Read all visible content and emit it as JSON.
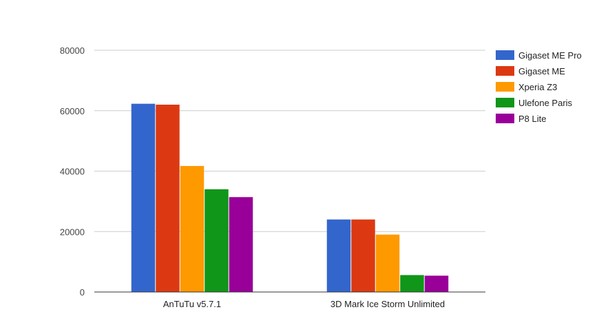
{
  "chart_data": {
    "type": "bar",
    "categories": [
      "AnTuTu v5.7.1",
      "3D Mark Ice Storm Unlimited"
    ],
    "series": [
      {
        "name": "Gigaset ME Pro",
        "color": "#3366cc",
        "values": [
          62300,
          24000
        ]
      },
      {
        "name": "Gigaset ME",
        "color": "#dc3912",
        "values": [
          62000,
          24000
        ]
      },
      {
        "name": "Xperia Z3",
        "color": "#ff9900",
        "values": [
          41700,
          19000
        ]
      },
      {
        "name": "Ulefone Paris",
        "color": "#109618",
        "values": [
          34000,
          5600
        ]
      },
      {
        "name": "P8 Lite",
        "color": "#990099",
        "values": [
          31400,
          5400
        ]
      }
    ],
    "yticks": [
      "0",
      "20000",
      "40000",
      "60000",
      "80000"
    ],
    "ylim": [
      0,
      80000
    ],
    "grid": true,
    "legend": "right"
  }
}
